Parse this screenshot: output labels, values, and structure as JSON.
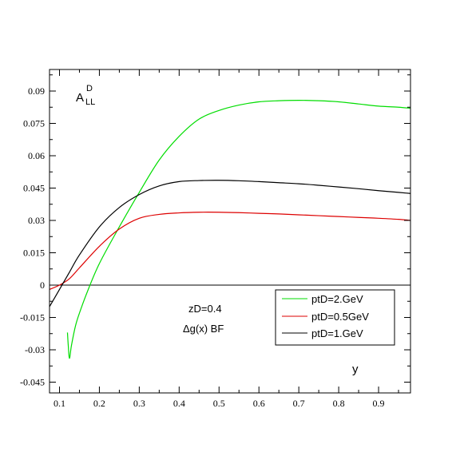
{
  "chart_data": {
    "type": "line",
    "title": "",
    "xlabel": "y",
    "ylabel_main": "A",
    "ylabel_sup": "D",
    "ylabel_sub": "LL",
    "xlim": [
      0.075,
      0.98
    ],
    "ylim": [
      -0.05,
      0.1
    ],
    "x_ticks": [
      0.1,
      0.2,
      0.3,
      0.4,
      0.5,
      0.6,
      0.7,
      0.8,
      0.9
    ],
    "x_tick_labels": [
      "0.1",
      "0.2",
      "0.3",
      "0.4",
      "0.5",
      "0.6",
      "0.7",
      "0.8",
      "0.9"
    ],
    "y_ticks": [
      -0.045,
      -0.03,
      -0.015,
      0,
      0.015,
      0.03,
      0.045,
      0.06,
      0.075,
      0.09
    ],
    "y_tick_labels": [
      "-0.045",
      "-0.03",
      "-0.015",
      "0",
      "0.015",
      "0.03",
      "0.045",
      "0.06",
      "0.075",
      "0.09"
    ],
    "zero_line": true,
    "annotations": [
      "zD=0.4",
      "Δg(x)  BF"
    ],
    "legend_position": "lower-right",
    "series": [
      {
        "name": "ptD=2.GeV",
        "color": "#00dd00",
        "x": [
          0.12,
          0.122,
          0.125,
          0.13,
          0.14,
          0.15,
          0.17,
          0.2,
          0.25,
          0.3,
          0.35,
          0.4,
          0.45,
          0.5,
          0.55,
          0.6,
          0.65,
          0.7,
          0.75,
          0.8,
          0.85,
          0.9,
          0.95,
          0.98
        ],
        "y": [
          -0.022,
          -0.028,
          -0.034,
          -0.028,
          -0.019,
          -0.013,
          -0.003,
          0.01,
          0.027,
          0.043,
          0.058,
          0.069,
          0.077,
          0.081,
          0.0835,
          0.085,
          0.0855,
          0.0857,
          0.0855,
          0.085,
          0.084,
          0.083,
          0.0825,
          0.082
        ]
      },
      {
        "name": "ptD=0.5GeV",
        "color": "#dd0000",
        "x": [
          0.075,
          0.1,
          0.125,
          0.15,
          0.2,
          0.25,
          0.3,
          0.35,
          0.4,
          0.45,
          0.5,
          0.55,
          0.6,
          0.65,
          0.7,
          0.75,
          0.8,
          0.85,
          0.9,
          0.95,
          0.98
        ],
        "y": [
          -0.002,
          0.0,
          0.003,
          0.008,
          0.018,
          0.026,
          0.031,
          0.0328,
          0.0335,
          0.0338,
          0.0338,
          0.0336,
          0.0333,
          0.033,
          0.0326,
          0.0322,
          0.0318,
          0.0314,
          0.031,
          0.0305,
          0.03
        ]
      },
      {
        "name": "ptD=1.GeV",
        "color": "#000000",
        "x": [
          0.075,
          0.1,
          0.125,
          0.15,
          0.2,
          0.25,
          0.3,
          0.35,
          0.4,
          0.45,
          0.5,
          0.55,
          0.6,
          0.65,
          0.7,
          0.75,
          0.8,
          0.85,
          0.9,
          0.95,
          0.98
        ],
        "y": [
          -0.01,
          -0.002,
          0.006,
          0.014,
          0.027,
          0.036,
          0.042,
          0.046,
          0.048,
          0.0485,
          0.0486,
          0.0484,
          0.048,
          0.0475,
          0.047,
          0.0463,
          0.0455,
          0.0447,
          0.0438,
          0.043,
          0.0425
        ]
      }
    ],
    "legend_order": [
      0,
      1,
      2
    ]
  }
}
